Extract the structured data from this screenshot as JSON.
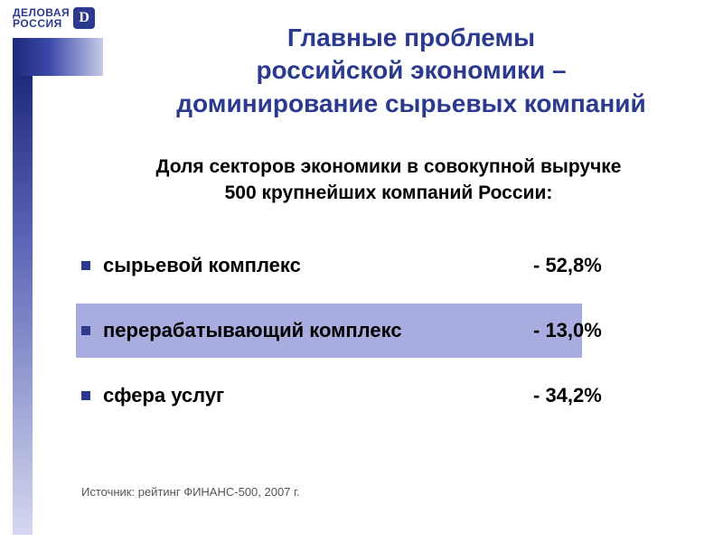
{
  "logo": {
    "line1": "ДЕЛОВАЯ",
    "line2": "РОССИЯ",
    "glyph": "D",
    "text_color": "#2b3a8f"
  },
  "title": {
    "text": "Главные проблемы\nроссийской экономики –\nдоминирование сырьевых компаний",
    "color": "#2b3a8f",
    "fontsize": 28
  },
  "subtitle": {
    "text": "Доля секторов экономики в совокупной выручке\n500 крупнейших компаний России:",
    "color": "#000000",
    "fontsize": 21
  },
  "items": [
    {
      "label": "сырьевой комплекс",
      "value": "- 52,8%",
      "highlight": false
    },
    {
      "label": "перерабатывающий комплекс",
      "value": "- 13,0%",
      "highlight": true
    },
    {
      "label": "сфера услуг",
      "value": "- 34,2%",
      "highlight": false
    }
  ],
  "item_style": {
    "fontsize": 22,
    "text_color": "#000000",
    "bullet_color": "#2b3a8f",
    "highlight_background": "#a8acde"
  },
  "source": {
    "text": "Источник: рейтинг ФИНАНС-500, 2007 г.",
    "fontsize": 13
  },
  "decor": {
    "side_bar_gradient": [
      "#1e2a7a",
      "#3a48a8",
      "#c6cbe8"
    ],
    "vertical_gradient": [
      "#1e2a7a",
      "#5a63b5",
      "#d5d8ef"
    ]
  }
}
